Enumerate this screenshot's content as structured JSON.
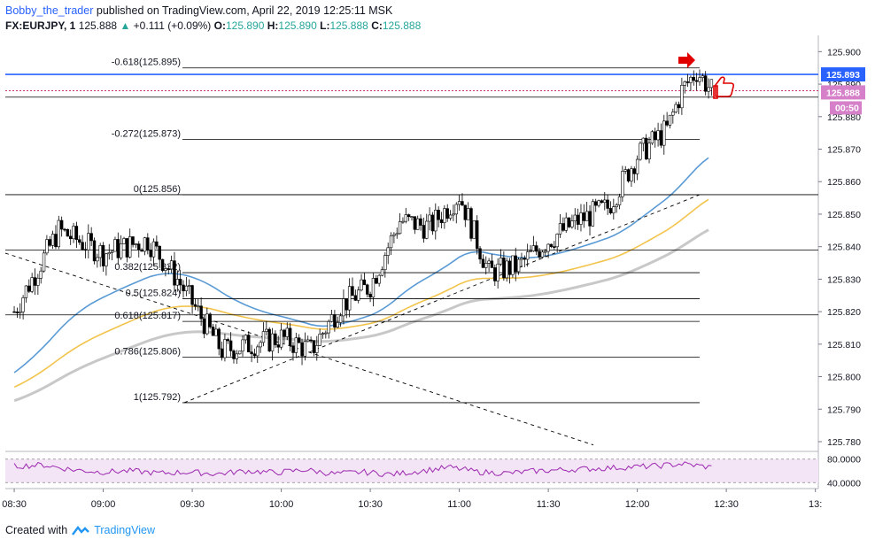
{
  "header": {
    "author": "Bobby_the_trader",
    "published": "published on TradingView.com, April 22, 2019 12:25:11 MSK",
    "symbol": "FX:EURJPY, 1",
    "last": "125.888",
    "change": "+0.111 (+0.09%)",
    "o_label": "O:",
    "o": "125.890",
    "h_label": "H:",
    "h": "125.890",
    "l_label": "L:",
    "l": "125.888",
    "c_label": "C:",
    "c": "125.888"
  },
  "footer": {
    "prefix": "Created with",
    "brand": "TradingView"
  },
  "colors": {
    "up": "#26a69a",
    "price_line": "#2962ff",
    "fib": "#000000",
    "rsi": "#9c27b0",
    "ma_fast": "#5b9bd5",
    "ma_mid": "#f2c44e",
    "ma_slow": "#c8c8c8"
  },
  "chart_data": {
    "type": "line",
    "title": "FX:EURJPY, 1",
    "ylim": [
      125.777,
      125.905
    ],
    "y_ticks": [
      "125.900",
      "125.890",
      "125.880",
      "125.870",
      "125.860",
      "125.850",
      "125.840",
      "125.830",
      "125.820",
      "125.810",
      "125.800",
      "125.790",
      "125.780"
    ],
    "x_ticks": [
      "08:30",
      "09:00",
      "09:30",
      "10:00",
      "10:30",
      "11:00",
      "11:30",
      "12:00",
      "12:30",
      "13:"
    ],
    "price_labels": {
      "high_line": "125.893",
      "last": "125.888",
      "countdown": "00:50"
    },
    "fib_levels": [
      {
        "label": "-0.618(125.895)",
        "value": 125.895
      },
      {
        "label": "-0.272(125.873)",
        "value": 125.873
      },
      {
        "label": "0(125.856)",
        "value": 125.856
      },
      {
        "label": "0.382(125.832)",
        "value": 125.832
      },
      {
        "label": "0.5(125.824)",
        "value": 125.824
      },
      {
        "label": "0.618(125.817)",
        "value": 125.817
      },
      {
        "label": "0.786(125.806)",
        "value": 125.806
      },
      {
        "label": "1(125.792)",
        "value": 125.792
      }
    ],
    "series": [
      {
        "values_time": [
          "08:30",
          "08:45",
          "09:00",
          "09:15",
          "09:25",
          "09:40",
          "09:50",
          "10:00",
          "10:10",
          "10:20",
          "10:30",
          "10:40",
          "10:50",
          "11:00",
          "11:10",
          "11:20",
          "11:30",
          "11:40",
          "11:50",
          "12:00",
          "12:05",
          "12:10",
          "12:15",
          "12:20",
          "12:25"
        ],
        "values": [
          125.82,
          125.845,
          125.838,
          125.842,
          125.83,
          125.808,
          125.81,
          125.812,
          125.808,
          125.822,
          125.828,
          125.848,
          125.846,
          125.856,
          125.832,
          125.834,
          125.842,
          125.848,
          125.852,
          125.868,
          125.872,
          125.876,
          125.888,
          125.894,
          125.888
        ]
      }
    ],
    "rsi": {
      "ticks": [
        "80.0000",
        "40.0000"
      ],
      "values": [
        68,
        70,
        62,
        58,
        60,
        56,
        58,
        55,
        60,
        57,
        62,
        55,
        58,
        54,
        60,
        66,
        58,
        56,
        60,
        62,
        64,
        66,
        68,
        72,
        66
      ]
    }
  }
}
